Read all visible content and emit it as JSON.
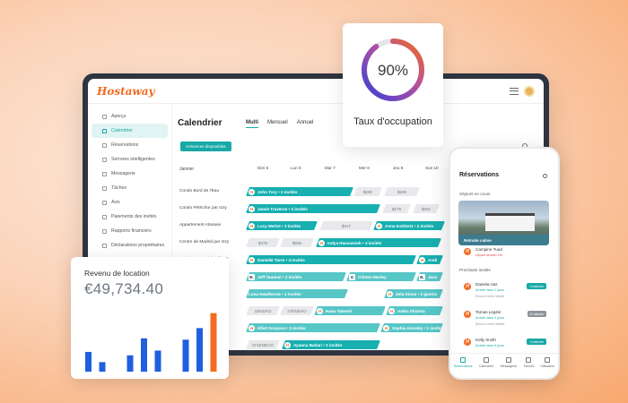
{
  "brand": {
    "logo": "Hostaway",
    "accent": "#f26b21",
    "teal": "#17a9a6"
  },
  "sidebar": {
    "items": [
      {
        "label": "Aperçu",
        "active": false
      },
      {
        "label": "Calendrier",
        "active": true
      },
      {
        "label": "Réservations",
        "active": false
      },
      {
        "label": "Serrures intelligentes",
        "active": false
      },
      {
        "label": "Messagerie",
        "active": false
      },
      {
        "label": "Tâches",
        "active": false
      },
      {
        "label": "Avis",
        "active": false
      },
      {
        "label": "Paiements des invités",
        "active": false
      },
      {
        "label": "Rapports financiers",
        "active": false
      },
      {
        "label": "Déclarations propriétaires",
        "active": false
      }
    ]
  },
  "calendar": {
    "title": "Calendrier",
    "views": [
      "Multi",
      "Mensuel",
      "Annuel"
    ],
    "active_view": "Multi",
    "available_button": "Annonces disponibles",
    "month": "Janvier",
    "days": [
      "Dim 6",
      "Lun 6",
      "Mar 7",
      "Mer 8",
      "Jeu 9",
      "Sun 10"
    ],
    "properties": [
      "Condo Bord de l'Eau",
      "Condo Pétrichor par Izzy",
      "Appartement Ataraxie",
      "Centre de Madrid par Izzy",
      "Condo Greenwich Village"
    ],
    "bars": {
      "r1a": "John Tory  •  2 invités",
      "r1b": "$200",
      "r1c": "$200",
      "r2a": "Jamie Traverse  •  2 invités",
      "r2b": "$279",
      "r2c": "$261",
      "r3a": "Lucy Merlot  •  3 invités",
      "r3b": "$417",
      "r3c": "Anna Inslitertz  •  2 invités",
      "r4a": "$478",
      "r4b": "$506",
      "r4c": "Indya Hassanneh  •  4 invités",
      "r5a": "Danielle Torre  •  4 invités",
      "r5b": "Andi",
      "r6a": "Jeff Tauman  •  2 invités",
      "r6b": "Clinton Marley",
      "r6c": "Jaso",
      "r7a": "Luna Hawthorne  •  1 invités",
      "r7b": "Zela Kiona  •  2 guests",
      "r8a": "1ÉNDÁO",
      "r8b": "27ÉNDÁO",
      "r8c": "Hana Takeshi",
      "r8d": "Anika Sharma",
      "r9a": "Elliot Grayson  •  2 invités",
      "r9b": "Sophia Kensley  •  1 invités",
      "r10a": "371ÉNDÁO",
      "r10b": "Ayanna Bahari  •  2 invités"
    }
  },
  "occupancy": {
    "label": "Taux d'occupation",
    "value_text": "90%",
    "value": 0.9
  },
  "revenue": {
    "title": "Revenu de location",
    "value": "€49,734.40",
    "chart_data": {
      "type": "bar",
      "values": [
        29,
        14,
        0,
        24,
        49,
        31,
        0,
        47,
        64,
        86
      ],
      "highlight_color": "#f26b21",
      "color": "#1f5fe0",
      "highlight_last": true
    }
  },
  "phone": {
    "title": "Réservations",
    "section_current": "Séjours en cours",
    "photo_caption": "Retraite calme",
    "current_guest": {
      "name": "Campine Tuud",
      "sub": "Départ demain 11h"
    },
    "section_next": "Prochains invités",
    "upcoming": [
      {
        "name": "Daniela Vaz",
        "sub": "Arrivée dans 2 jours",
        "tag": "Confirmée",
        "note": "Retour à la file Habitée"
      },
      {
        "name": "Tomas Legési",
        "sub": "Arrivée dans 4 jours",
        "tag": "En attente",
        "note": "Retour à la file Habitée"
      },
      {
        "name": "Kelly Smith",
        "sub": "Arrivée dans 6 jours",
        "tag": "Confirmée",
        "note": ""
      }
    ],
    "nav": [
      "Réservations",
      "Calendrier",
      "Messagerie",
      "Tâches",
      "Utilisateur"
    ]
  }
}
